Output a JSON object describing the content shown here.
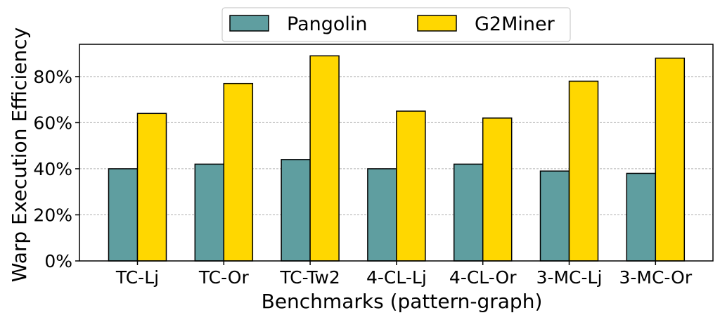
{
  "chart_data": {
    "type": "bar",
    "title": "",
    "xlabel": "Benchmarks (pattern-graph)",
    "ylabel": "Warp Execution Efficiency",
    "ylim": [
      0,
      94
    ],
    "yticks": [
      0,
      20,
      40,
      60,
      80
    ],
    "ytick_labels": [
      "0%",
      "20%",
      "40%",
      "60%",
      "80%"
    ],
    "grid": "y dashed",
    "legend_placement": "top-center",
    "categories": [
      "TC-Lj",
      "TC-Or",
      "TC-Tw2",
      "4-CL-Lj",
      "4-CL-Or",
      "3-MC-Lj",
      "3-MC-Or"
    ],
    "series": [
      {
        "name": "Pangolin",
        "color": "#5f9ea0",
        "values": [
          40,
          42,
          44,
          40,
          42,
          39,
          38
        ]
      },
      {
        "name": "G2Miner",
        "color": "#ffd700",
        "values": [
          64,
          77,
          89,
          65,
          62,
          78,
          88
        ]
      }
    ]
  }
}
